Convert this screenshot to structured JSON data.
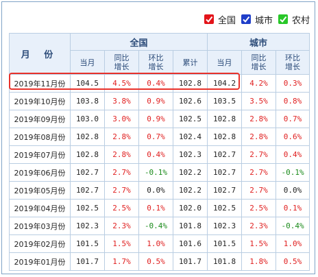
{
  "legend": [
    {
      "label": "全国",
      "color": "#e3141a"
    },
    {
      "label": "城市",
      "color": "#1f3ec9"
    },
    {
      "label": "农村",
      "color": "#28c728"
    }
  ],
  "header": {
    "month": "月  份",
    "national": "全国",
    "city": "城市",
    "cols_national": [
      "当月",
      "同比\n增长",
      "环比\n增长",
      "累计"
    ],
    "cols_city": [
      "当月",
      "同比\n增长",
      "环比\n增长"
    ]
  },
  "colors": {
    "positive": "#e02020",
    "negative": "#1a8a1a",
    "zero": "#222222"
  },
  "rows": [
    {
      "month": "2019年11月份",
      "n_cur": "104.5",
      "n_yoy": "4.5%",
      "n_mom": "0.4%",
      "n_cum": "102.8",
      "c_cur": "104.2",
      "c_yoy": "4.2%",
      "c_mom": "0.3%"
    },
    {
      "month": "2019年10月份",
      "n_cur": "103.8",
      "n_yoy": "3.8%",
      "n_mom": "0.9%",
      "n_cum": "102.6",
      "c_cur": "103.5",
      "c_yoy": "3.5%",
      "c_mom": "0.8%"
    },
    {
      "month": "2019年09月份",
      "n_cur": "103.0",
      "n_yoy": "3.0%",
      "n_mom": "0.9%",
      "n_cum": "102.5",
      "c_cur": "102.8",
      "c_yoy": "2.8%",
      "c_mom": "0.7%"
    },
    {
      "month": "2019年08月份",
      "n_cur": "102.8",
      "n_yoy": "2.8%",
      "n_mom": "0.7%",
      "n_cum": "102.4",
      "c_cur": "102.8",
      "c_yoy": "2.8%",
      "c_mom": "0.6%"
    },
    {
      "month": "2019年07月份",
      "n_cur": "102.8",
      "n_yoy": "2.8%",
      "n_mom": "0.4%",
      "n_cum": "102.3",
      "c_cur": "102.7",
      "c_yoy": "2.7%",
      "c_mom": "0.4%"
    },
    {
      "month": "2019年06月份",
      "n_cur": "102.7",
      "n_yoy": "2.7%",
      "n_mom": "-0.1%",
      "n_cum": "102.2",
      "c_cur": "102.7",
      "c_yoy": "2.7%",
      "c_mom": "-0.1%"
    },
    {
      "month": "2019年05月份",
      "n_cur": "102.7",
      "n_yoy": "2.7%",
      "n_mom": "0.0%",
      "n_cum": "102.2",
      "c_cur": "102.7",
      "c_yoy": "2.7%",
      "c_mom": "0.0%"
    },
    {
      "month": "2019年04月份",
      "n_cur": "102.5",
      "n_yoy": "2.5%",
      "n_mom": "0.1%",
      "n_cum": "102.0",
      "c_cur": "102.5",
      "c_yoy": "2.5%",
      "c_mom": "0.1%"
    },
    {
      "month": "2019年03月份",
      "n_cur": "102.3",
      "n_yoy": "2.3%",
      "n_mom": "-0.4%",
      "n_cum": "101.8",
      "c_cur": "102.3",
      "c_yoy": "2.3%",
      "c_mom": "-0.4%"
    },
    {
      "month": "2019年02月份",
      "n_cur": "101.5",
      "n_yoy": "1.5%",
      "n_mom": "1.0%",
      "n_cum": "101.6",
      "c_cur": "101.5",
      "c_yoy": "1.5%",
      "c_mom": "1.0%"
    },
    {
      "month": "2019年01月份",
      "n_cur": "101.7",
      "n_yoy": "1.7%",
      "n_mom": "0.5%",
      "n_cum": "101.7",
      "c_cur": "101.8",
      "c_yoy": "1.8%",
      "c_mom": "0.5%"
    }
  ]
}
